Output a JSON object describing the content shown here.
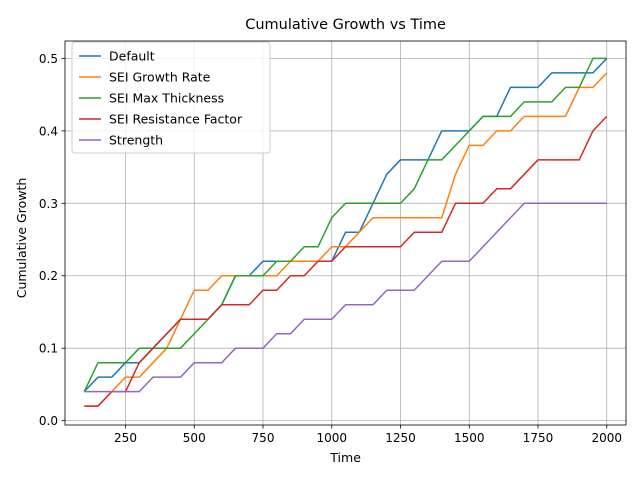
{
  "chart_data": {
    "type": "line",
    "title": "Cumulative Growth vs Time",
    "xlabel": "Time",
    "ylabel": "Cumulative Growth",
    "xlim": [
      30,
      2070
    ],
    "ylim": [
      -0.006,
      0.524
    ],
    "xticks": [
      250,
      500,
      750,
      1000,
      1250,
      1500,
      1750,
      2000
    ],
    "yticks": [
      0.0,
      0.1,
      0.2,
      0.3,
      0.4,
      0.5
    ],
    "xtick_labels": [
      "250",
      "500",
      "750",
      "1000",
      "1250",
      "1500",
      "1750",
      "2000"
    ],
    "ytick_labels": [
      "0.0",
      "0.1",
      "0.2",
      "0.3",
      "0.4",
      "0.5"
    ],
    "grid": true,
    "legend_position": "top-left",
    "x": [
      100,
      150,
      200,
      250,
      300,
      350,
      400,
      450,
      500,
      550,
      600,
      650,
      700,
      750,
      800,
      850,
      900,
      950,
      1000,
      1050,
      1100,
      1150,
      1200,
      1250,
      1300,
      1350,
      1400,
      1450,
      1500,
      1550,
      1600,
      1650,
      1700,
      1750,
      1800,
      1850,
      1900,
      1950,
      2000
    ],
    "series": [
      {
        "name": "Default",
        "color": "#1f77b4",
        "values": [
          0.04,
          0.06,
          0.06,
          0.08,
          0.08,
          0.1,
          0.12,
          0.14,
          0.14,
          0.14,
          0.16,
          0.2,
          0.2,
          0.22,
          0.22,
          0.22,
          0.22,
          0.22,
          0.22,
          0.26,
          0.26,
          0.3,
          0.34,
          0.36,
          0.36,
          0.36,
          0.4,
          0.4,
          0.4,
          0.42,
          0.42,
          0.46,
          0.46,
          0.46,
          0.48,
          0.48,
          0.48,
          0.48,
          0.5
        ]
      },
      {
        "name": "SEI Growth Rate",
        "color": "#ff7f0e",
        "values": [
          0.02,
          0.02,
          0.04,
          0.06,
          0.06,
          0.08,
          0.1,
          0.14,
          0.18,
          0.18,
          0.2,
          0.2,
          0.2,
          0.2,
          0.2,
          0.22,
          0.22,
          0.22,
          0.24,
          0.24,
          0.26,
          0.28,
          0.28,
          0.28,
          0.28,
          0.28,
          0.28,
          0.34,
          0.38,
          0.38,
          0.4,
          0.4,
          0.42,
          0.42,
          0.42,
          0.42,
          0.46,
          0.46,
          0.48
        ]
      },
      {
        "name": "SEI Max Thickness",
        "color": "#2ca02c",
        "values": [
          0.04,
          0.08,
          0.08,
          0.08,
          0.1,
          0.1,
          0.1,
          0.1,
          0.12,
          0.14,
          0.16,
          0.2,
          0.2,
          0.2,
          0.22,
          0.22,
          0.24,
          0.24,
          0.28,
          0.3,
          0.3,
          0.3,
          0.3,
          0.3,
          0.32,
          0.36,
          0.36,
          0.38,
          0.4,
          0.42,
          0.42,
          0.42,
          0.44,
          0.44,
          0.44,
          0.46,
          0.46,
          0.5,
          0.5
        ]
      },
      {
        "name": "SEI Resistance Factor",
        "color": "#d62728",
        "values": [
          0.02,
          0.02,
          0.04,
          0.04,
          0.08,
          0.1,
          0.12,
          0.14,
          0.14,
          0.14,
          0.16,
          0.16,
          0.16,
          0.18,
          0.18,
          0.2,
          0.2,
          0.22,
          0.22,
          0.24,
          0.24,
          0.24,
          0.24,
          0.24,
          0.26,
          0.26,
          0.26,
          0.3,
          0.3,
          0.3,
          0.32,
          0.32,
          0.34,
          0.36,
          0.36,
          0.36,
          0.36,
          0.4,
          0.42
        ]
      },
      {
        "name": "Strength",
        "color": "#9467bd",
        "values": [
          0.04,
          0.04,
          0.04,
          0.04,
          0.04,
          0.06,
          0.06,
          0.06,
          0.08,
          0.08,
          0.08,
          0.1,
          0.1,
          0.1,
          0.12,
          0.12,
          0.14,
          0.14,
          0.14,
          0.16,
          0.16,
          0.16,
          0.18,
          0.18,
          0.18,
          0.2,
          0.22,
          0.22,
          0.22,
          0.24,
          0.26,
          0.28,
          0.3,
          0.3,
          0.3,
          0.3,
          0.3,
          0.3,
          0.3
        ]
      }
    ]
  }
}
